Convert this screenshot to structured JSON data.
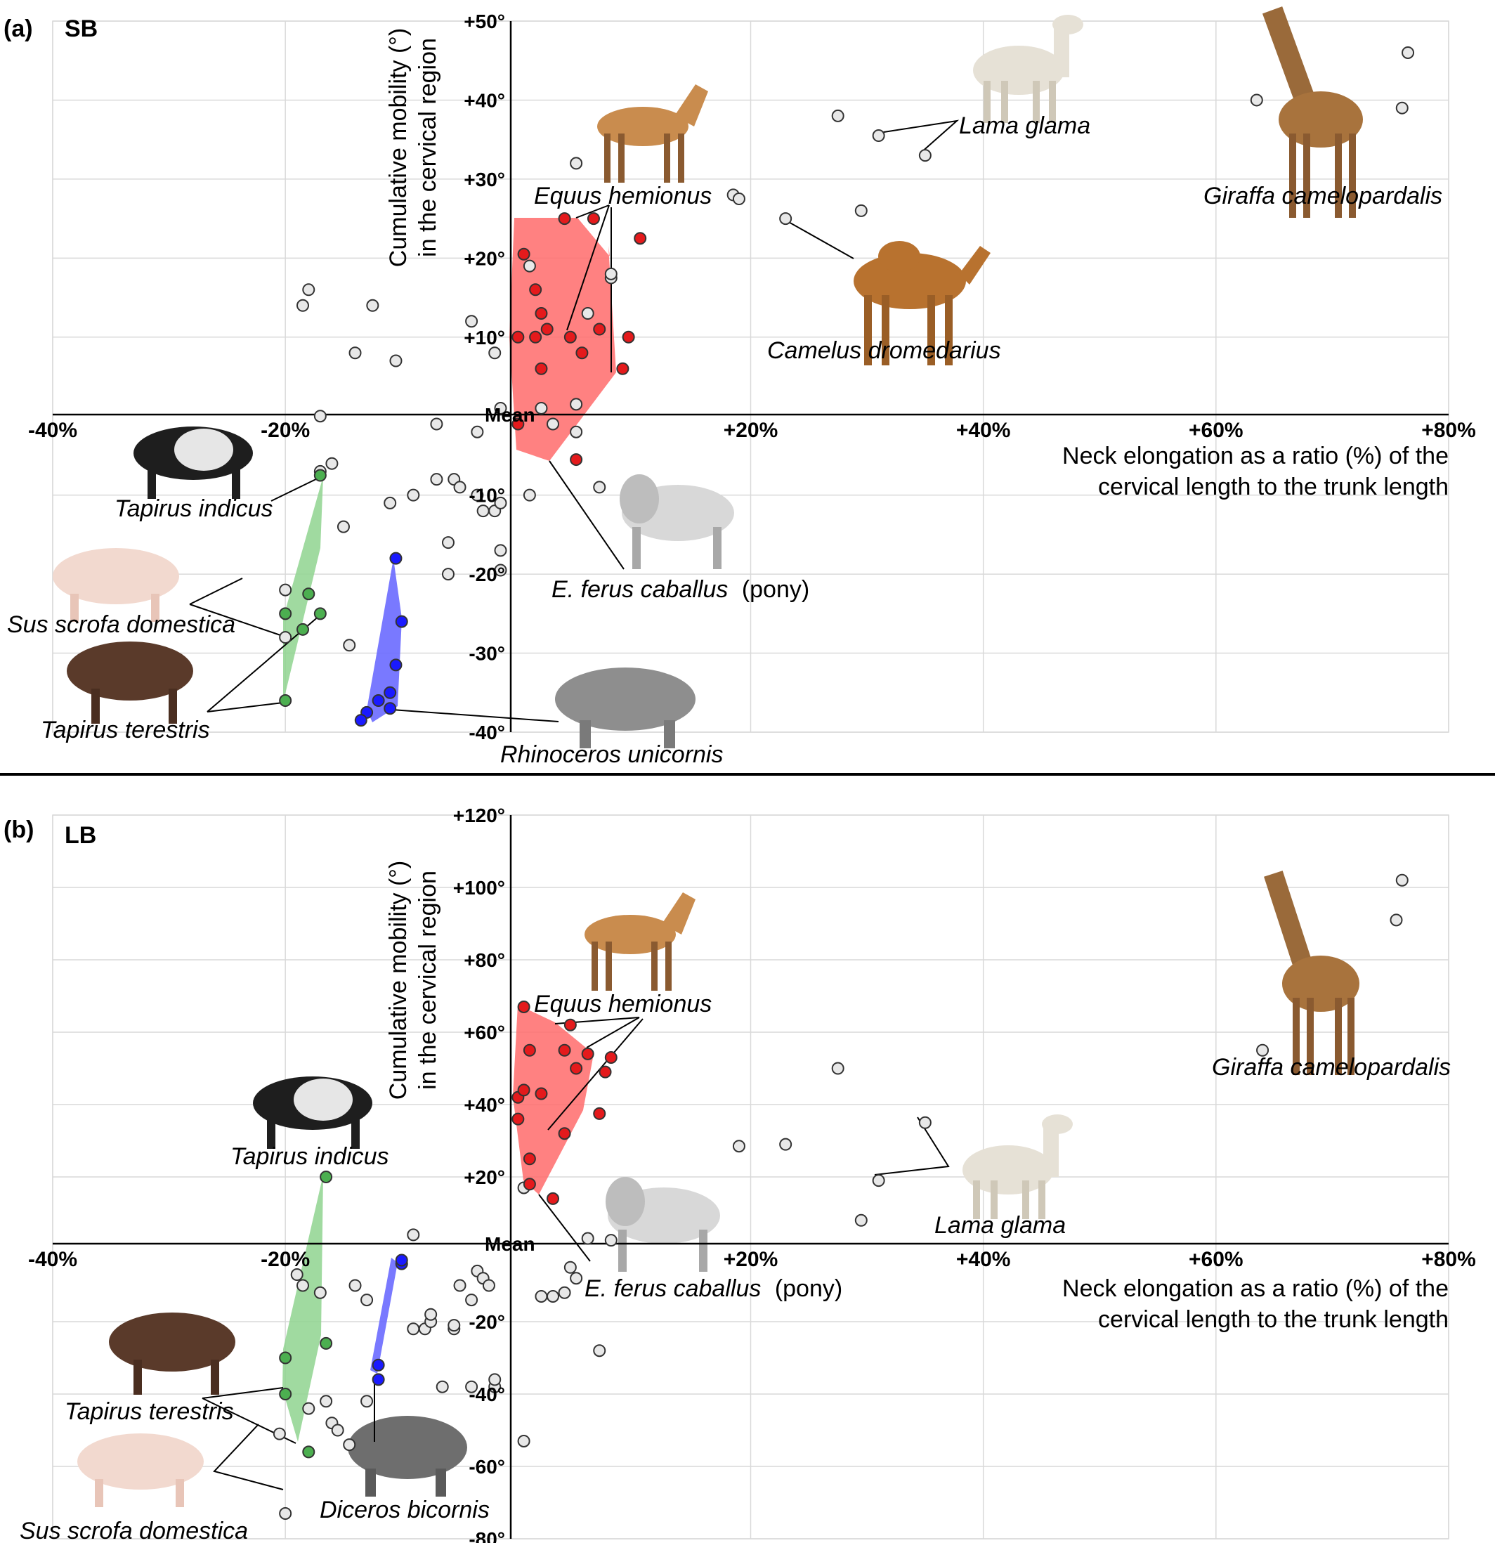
{
  "separator": true,
  "chart_data": [
    {
      "type": "scatter",
      "panel_label": "(a)",
      "title": "SB",
      "xlabel": [
        "Neck elongation as a ratio (%) of the",
        "cervical length to the trunk length"
      ],
      "ylabel": [
        "Cumulative mobility (°)",
        "in the cervical region"
      ],
      "xlim": [
        -40,
        80
      ],
      "ylim": [
        -40,
        50
      ],
      "x_ticks": [
        -40,
        -20,
        20,
        40,
        60,
        80
      ],
      "x_tick_labels": [
        "-40%",
        "-20%",
        "+20%",
        "+40%",
        "+60%",
        "+80%"
      ],
      "y_ticks": [
        50,
        40,
        30,
        20,
        10,
        -10,
        -20,
        -30,
        -40
      ],
      "y_tick_labels": [
        "+50°",
        "+40°",
        "+30°",
        "+20°",
        "+10°",
        "-10°",
        "-20°",
        "-30°",
        "-40°"
      ],
      "mean_label": "Mean",
      "grid": true,
      "series": [
        {
          "color": "#e8e8e8",
          "points": [
            [
              -18.5,
              14
            ],
            [
              -18,
              16
            ],
            [
              -17,
              0
            ],
            [
              -14,
              8
            ],
            [
              -12.5,
              14
            ],
            [
              -10.5,
              7
            ],
            [
              -9,
              -10
            ],
            [
              -7,
              -8
            ],
            [
              -7,
              -1
            ],
            [
              -5.5,
              -8
            ],
            [
              -5,
              -9
            ],
            [
              -6,
              -20
            ],
            [
              -6,
              -16
            ],
            [
              -4,
              12
            ],
            [
              -3.5,
              -10
            ],
            [
              -3.5,
              -2
            ],
            [
              -2,
              -12
            ],
            [
              -1.5,
              -11
            ],
            [
              -1.5,
              1
            ],
            [
              -2,
              8
            ],
            [
              -3,
              -12
            ],
            [
              -1.5,
              -17
            ],
            [
              -1.5,
              -19.5
            ],
            [
              1,
              -10
            ],
            [
              1,
              19
            ],
            [
              2,
              1
            ],
            [
              3,
              -1
            ],
            [
              5,
              1.5
            ],
            [
              5,
              -2
            ],
            [
              5,
              32
            ],
            [
              6,
              13
            ],
            [
              8,
              17.5
            ],
            [
              8,
              18
            ],
            [
              7,
              -9
            ],
            [
              18.5,
              28
            ],
            [
              19,
              27.5
            ],
            [
              23,
              25
            ],
            [
              27.5,
              38
            ],
            [
              29.5,
              26
            ],
            [
              31,
              35.5
            ],
            [
              35,
              33
            ],
            [
              63.5,
              40
            ],
            [
              76,
              39
            ],
            [
              76.5,
              46
            ],
            [
              -17,
              -7
            ],
            [
              -16,
              -6
            ],
            [
              -15,
              -14
            ],
            [
              -11,
              -11
            ],
            [
              -14.5,
              -29
            ],
            [
              -20,
              -22
            ],
            [
              -20,
              -28
            ]
          ]
        },
        {
          "color": "#e41a1c",
          "points": [
            [
              0,
              -1
            ],
            [
              0,
              10
            ],
            [
              0.5,
              20.5
            ],
            [
              1.5,
              16
            ],
            [
              1.5,
              10
            ],
            [
              2,
              13
            ],
            [
              2,
              6
            ],
            [
              2.5,
              11
            ],
            [
              4,
              25
            ],
            [
              4.5,
              10
            ],
            [
              5,
              -5.5
            ],
            [
              5.5,
              8
            ],
            [
              6.5,
              25
            ],
            [
              7,
              11
            ],
            [
              9,
              6
            ],
            [
              9.5,
              10
            ],
            [
              10.5,
              22.5
            ]
          ]
        },
        {
          "color": "#4caf50",
          "points": [
            [
              -17,
              -7.5
            ],
            [
              -20,
              -25
            ],
            [
              -20,
              -36
            ],
            [
              -18.5,
              -27
            ],
            [
              -18,
              -22.5
            ],
            [
              -17,
              -25
            ]
          ]
        },
        {
          "color": "#1a1aff",
          "points": [
            [
              -10.5,
              -18
            ],
            [
              -10,
              -26
            ],
            [
              -10.5,
              -31.5
            ],
            [
              -11,
              -35
            ],
            [
              -11,
              -37
            ],
            [
              -12,
              -36
            ],
            [
              -13,
              -37.5
            ],
            [
              -13.5,
              -38.5
            ]
          ]
        }
      ],
      "species_labels": [
        "Equus hemionus",
        "Lama glama",
        "Giraffa camelopardalis",
        "Camelus dromedarius",
        "Tapirus indicus",
        "E. ferus caballus",
        "(pony)",
        "Sus scrofa domestica",
        "Tapirus terestris",
        "Rhinoceros unicornis"
      ]
    },
    {
      "type": "scatter",
      "panel_label": "(b)",
      "title": "LB",
      "xlabel": [
        "Neck elongation as a ratio (%) of the",
        "cervical length to the trunk length"
      ],
      "ylabel": [
        "Cumulative mobility (°)",
        "in the cervical region"
      ],
      "xlim": [
        -40,
        80
      ],
      "ylim": [
        -80,
        120
      ],
      "x_ticks": [
        -40,
        -20,
        20,
        40,
        60,
        80
      ],
      "x_tick_labels": [
        "-40%",
        "-20%",
        "+20%",
        "+40%",
        "+60%",
        "+80%"
      ],
      "y_ticks": [
        120,
        100,
        80,
        60,
        40,
        20,
        -20,
        -40,
        -60,
        -80
      ],
      "y_tick_labels": [
        "+120°",
        "+100°",
        "+80°",
        "+60°",
        "+40°",
        "+20°",
        "-20°",
        "-40°",
        "-60°",
        "-80°"
      ],
      "mean_label": "Mean",
      "grid": true,
      "series": [
        {
          "color": "#e8e8e8",
          "points": [
            [
              -19,
              -7
            ],
            [
              -18.5,
              -10
            ],
            [
              -17,
              -12
            ],
            [
              -18,
              -44
            ],
            [
              -16.5,
              -42
            ],
            [
              -16,
              -48
            ],
            [
              -15.5,
              -50
            ],
            [
              -14.5,
              -54
            ],
            [
              -14,
              -10
            ],
            [
              -13,
              -14
            ],
            [
              -13,
              -42
            ],
            [
              -9,
              -22
            ],
            [
              -9,
              4
            ],
            [
              -8,
              -22
            ],
            [
              -7.5,
              -20
            ],
            [
              -7.5,
              -18
            ],
            [
              -6.5,
              -38
            ],
            [
              -5.5,
              -22
            ],
            [
              -5.5,
              -21
            ],
            [
              -5,
              -10
            ],
            [
              -4,
              -14
            ],
            [
              -4,
              -38
            ],
            [
              -3.5,
              -6
            ],
            [
              -3,
              -8
            ],
            [
              -2.5,
              -10
            ],
            [
              -2,
              -38
            ],
            [
              -2,
              -36
            ],
            [
              0.5,
              -53
            ],
            [
              0.5,
              17
            ],
            [
              2,
              -13
            ],
            [
              3,
              -13
            ],
            [
              4,
              -12
            ],
            [
              5,
              -8
            ],
            [
              4.5,
              -5
            ],
            [
              6,
              3
            ],
            [
              7,
              -28
            ],
            [
              8,
              2.5
            ],
            [
              19,
              28.5
            ],
            [
              23,
              29
            ],
            [
              27.5,
              50
            ],
            [
              29.5,
              8
            ],
            [
              31,
              19
            ],
            [
              35,
              35
            ],
            [
              64,
              55
            ],
            [
              75.5,
              91
            ],
            [
              76,
              102
            ],
            [
              -20.5,
              -51
            ],
            [
              -20,
              -73
            ]
          ]
        },
        {
          "color": "#e41a1c",
          "points": [
            [
              0,
              42
            ],
            [
              0,
              36
            ],
            [
              0.5,
              67
            ],
            [
              0.5,
              44
            ],
            [
              1,
              25
            ],
            [
              1,
              55
            ],
            [
              1,
              18
            ],
            [
              2,
              43
            ],
            [
              3,
              14
            ],
            [
              4,
              55
            ],
            [
              4,
              32
            ],
            [
              4.5,
              62
            ],
            [
              5,
              50
            ],
            [
              6,
              54
            ],
            [
              7,
              37.5
            ],
            [
              7.5,
              49
            ],
            [
              8,
              53
            ]
          ]
        },
        {
          "color": "#4caf50",
          "points": [
            [
              -16.5,
              20
            ],
            [
              -20,
              -30
            ],
            [
              -20,
              -40
            ],
            [
              -18,
              -56
            ],
            [
              -16.5,
              -26
            ]
          ]
        },
        {
          "color": "#1a1aff",
          "points": [
            [
              -10,
              -4
            ],
            [
              -10,
              -3
            ],
            [
              -12,
              -32
            ],
            [
              -12,
              -36
            ]
          ]
        }
      ],
      "species_labels": [
        "Equus hemionus",
        "Giraffa camelopardalis",
        "Tapirus indicus",
        "Lama glama",
        "E. ferus caballus",
        "(pony)",
        "Tapirus terestris",
        "Sus scrofa domestica",
        "Diceros bicornis"
      ]
    }
  ]
}
